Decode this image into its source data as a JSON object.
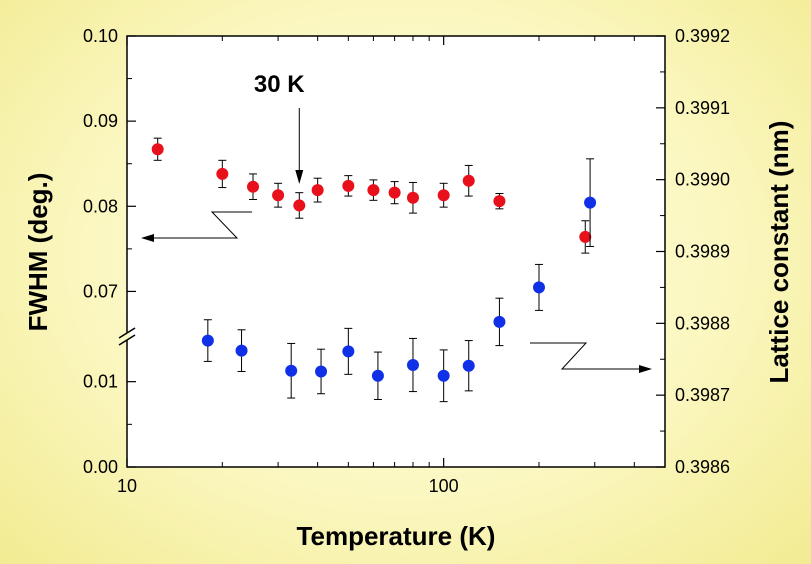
{
  "chart_data": {
    "type": "scatter",
    "xlabel": "Temperature (K)",
    "ylabel_left": "FWHM  (deg.)",
    "ylabel_right": "Lattice constant (nm)",
    "x_scale": "log",
    "xlim": [
      10,
      500
    ],
    "x_ticks": [
      {
        "value": 10,
        "label": "10"
      },
      {
        "value": 100,
        "label": "100"
      }
    ],
    "left_axis": {
      "lower_segment": {
        "range": [
          0.0,
          0.015
        ],
        "ticks": [
          {
            "value": 0.0,
            "label": "0.00"
          },
          {
            "value": 0.01,
            "label": "0.01"
          }
        ]
      },
      "upper_segment": {
        "range": [
          0.065,
          0.1
        ],
        "ticks": [
          {
            "value": 0.07,
            "label": "0.07"
          },
          {
            "value": 0.08,
            "label": "0.08"
          },
          {
            "value": 0.09,
            "label": "0.09"
          },
          {
            "value": 0.1,
            "label": "0.10"
          }
        ]
      },
      "break": true
    },
    "right_axis": {
      "range": [
        0.3986,
        0.3992
      ],
      "ticks": [
        {
          "value": 0.3986,
          "label": "0.3986"
        },
        {
          "value": 0.3987,
          "label": "0.3987"
        },
        {
          "value": 0.3988,
          "label": "0.3988"
        },
        {
          "value": 0.3989,
          "label": "0.3989"
        },
        {
          "value": 0.399,
          "label": "0.3990"
        },
        {
          "value": 0.3991,
          "label": "0.3991"
        },
        {
          "value": 0.3992,
          "label": "0.3992"
        }
      ]
    },
    "series": [
      {
        "color": "#e8101a",
        "axis": "left",
        "points": [
          {
            "x": 12.5,
            "y": 0.0867,
            "err": 0.0013
          },
          {
            "x": 20,
            "y": 0.0838,
            "err": 0.0016
          },
          {
            "x": 25,
            "y": 0.0823,
            "err": 0.0015
          },
          {
            "x": 30,
            "y": 0.0813,
            "err": 0.0014
          },
          {
            "x": 35,
            "y": 0.0801,
            "err": 0.0015
          },
          {
            "x": 40,
            "y": 0.0819,
            "err": 0.0014
          },
          {
            "x": 50,
            "y": 0.0824,
            "err": 0.0012
          },
          {
            "x": 60,
            "y": 0.0819,
            "err": 0.0012
          },
          {
            "x": 70,
            "y": 0.0816,
            "err": 0.0013
          },
          {
            "x": 80,
            "y": 0.081,
            "err": 0.0018
          },
          {
            "x": 100,
            "y": 0.0813,
            "err": 0.0014
          },
          {
            "x": 120,
            "y": 0.083,
            "err": 0.0018
          },
          {
            "x": 150,
            "y": 0.0806,
            "err": 0.0009
          },
          {
            "x": 280,
            "y": 0.0764,
            "err": 0.0019
          }
        ]
      },
      {
        "color": "#1030e8",
        "axis": "right",
        "points": [
          {
            "x": 18,
            "y": 0.398776,
            "err": 2.9e-05
          },
          {
            "x": 23,
            "y": 0.398762,
            "err": 2.9e-05
          },
          {
            "x": 33,
            "y": 0.398734,
            "err": 3.8e-05
          },
          {
            "x": 41,
            "y": 0.398733,
            "err": 3.1e-05
          },
          {
            "x": 50,
            "y": 0.398761,
            "err": 3.2e-05
          },
          {
            "x": 62,
            "y": 0.398727,
            "err": 3.3e-05
          },
          {
            "x": 80,
            "y": 0.398742,
            "err": 3.7e-05
          },
          {
            "x": 100,
            "y": 0.398727,
            "err": 3.6e-05
          },
          {
            "x": 120,
            "y": 0.398741,
            "err": 3.5e-05
          },
          {
            "x": 150,
            "y": 0.398802,
            "err": 3.3e-05
          },
          {
            "x": 200,
            "y": 0.39885,
            "err": 3.2e-05
          },
          {
            "x": 290,
            "y": 0.398968,
            "err": 6.1e-05
          }
        ]
      }
    ],
    "annotations": [
      {
        "text": "30 K",
        "x": 35
      }
    ],
    "grid": false,
    "legend": "none"
  }
}
